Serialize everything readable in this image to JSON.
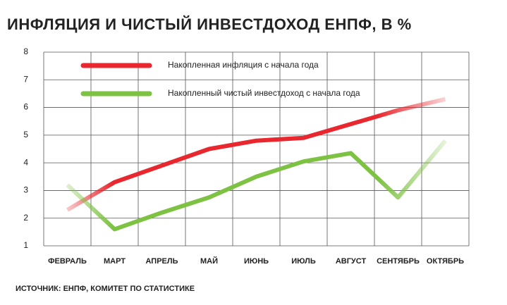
{
  "chart_data": {
    "type": "line",
    "title": "ИНФЛЯЦИЯ И ЧИСТЫЙ ИНВЕСТДОХОД ЕНПФ, В %",
    "source": "ИСТОЧНИК: ЕНПФ, КОМИТЕТ ПО СТАТИСТИКЕ",
    "categories": [
      "ФЕВРАЛЬ",
      "МАРТ",
      "АПРЕЛЬ",
      "МАЙ",
      "ИЮНЬ",
      "ИЮЛЬ",
      "АВГУСТ",
      "СЕНТЯБРЬ",
      "ОКТЯБРЬ"
    ],
    "series": [
      {
        "name": "Накопленная инфляция с начала года",
        "color": "#e8282e",
        "values": [
          2.3,
          3.3,
          3.9,
          4.5,
          4.8,
          4.9,
          5.4,
          5.9,
          6.3
        ]
      },
      {
        "name": "Накопленный чистый инвестдоход с начала года",
        "color": "#7dc242",
        "values": [
          3.2,
          1.6,
          2.2,
          2.75,
          3.5,
          4.05,
          4.35,
          2.75,
          4.8
        ]
      }
    ],
    "ylim": [
      1,
      8
    ],
    "yticks": [
      1,
      2,
      3,
      4,
      5,
      6,
      7,
      8
    ],
    "grid": true
  }
}
